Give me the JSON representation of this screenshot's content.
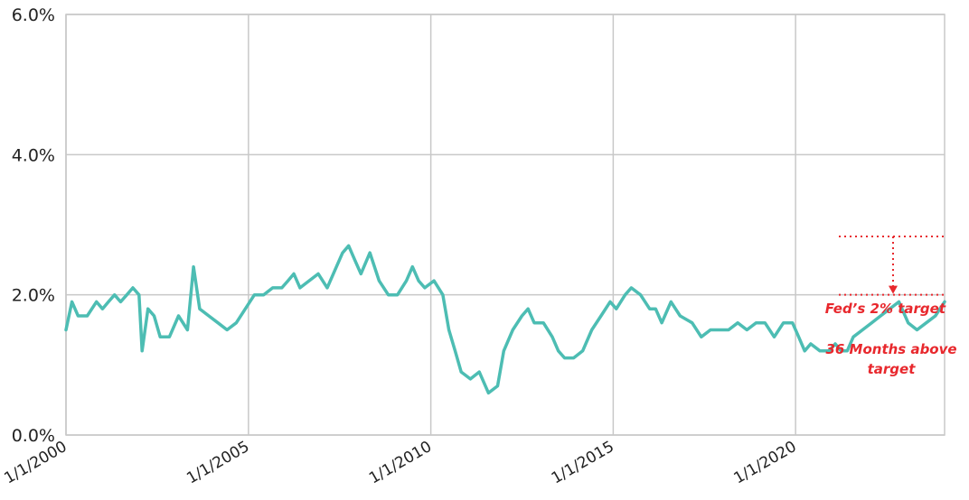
{
  "chart_data": {
    "type": "line",
    "title": "",
    "xlabel": "",
    "ylabel": "",
    "x_range": [
      "2000-01-01",
      "2024-02-01"
    ],
    "ylim": [
      0,
      6
    ],
    "y_ticks": [
      {
        "value": 0,
        "label": "0.0%"
      },
      {
        "value": 2,
        "label": "2.0%"
      },
      {
        "value": 4,
        "label": "4.0%"
      },
      {
        "value": 6,
        "label": "6.0%"
      }
    ],
    "x_ticks": [
      {
        "date": "2000-01-01",
        "label": "1/1/2000"
      },
      {
        "date": "2005-01-01",
        "label": "1/1/2005"
      },
      {
        "date": "2010-01-01",
        "label": "1/1/2010"
      },
      {
        "date": "2015-01-01",
        "label": "1/1/2015"
      },
      {
        "date": "2020-01-01",
        "label": "1/1/2020"
      }
    ],
    "grid": true,
    "line_color": "#4dbdb3",
    "annotation_color": "#e8282d",
    "series": [
      {
        "points": [
          [
            "2000-01-01",
            1.5
          ],
          [
            "2000-03-01",
            1.9
          ],
          [
            "2000-05-01",
            1.7
          ],
          [
            "2000-08-01",
            1.7
          ],
          [
            "2000-11-01",
            1.9
          ],
          [
            "2001-01-01",
            1.8
          ],
          [
            "2001-03-01",
            1.9
          ],
          [
            "2001-05-01",
            2.0
          ],
          [
            "2001-07-01",
            1.9
          ],
          [
            "2001-09-01",
            2.0
          ],
          [
            "2001-11-01",
            2.1
          ],
          [
            "2002-01-01",
            2.0
          ],
          [
            "2002-02-01",
            1.2
          ],
          [
            "2002-04-01",
            1.8
          ],
          [
            "2002-06-01",
            1.7
          ],
          [
            "2002-08-01",
            1.4
          ],
          [
            "2002-11-01",
            1.4
          ],
          [
            "2003-02-01",
            1.7
          ],
          [
            "2003-05-01",
            1.5
          ],
          [
            "2003-07-01",
            2.4
          ],
          [
            "2003-09-01",
            1.8
          ],
          [
            "2003-12-01",
            1.7
          ],
          [
            "2004-03-01",
            1.6
          ],
          [
            "2004-06-01",
            1.5
          ],
          [
            "2004-09-01",
            1.6
          ],
          [
            "2004-12-01",
            1.8
          ],
          [
            "2005-03-01",
            2.0
          ],
          [
            "2005-06-01",
            2.0
          ],
          [
            "2005-09-01",
            2.1
          ],
          [
            "2005-12-01",
            2.1
          ],
          [
            "2006-02-01",
            2.2
          ],
          [
            "2006-04-01",
            2.3
          ],
          [
            "2006-06-01",
            2.1
          ],
          [
            "2006-09-01",
            2.2
          ],
          [
            "2006-12-01",
            2.3
          ],
          [
            "2007-03-01",
            2.1
          ],
          [
            "2007-06-01",
            2.4
          ],
          [
            "2007-08-01",
            2.6
          ],
          [
            "2007-10-01",
            2.7
          ],
          [
            "2007-12-01",
            2.5
          ],
          [
            "2008-02-01",
            2.3
          ],
          [
            "2008-05-01",
            2.6
          ],
          [
            "2008-08-01",
            2.2
          ],
          [
            "2008-11-01",
            2.0
          ],
          [
            "2009-02-01",
            2.0
          ],
          [
            "2009-05-01",
            2.2
          ],
          [
            "2009-07-01",
            2.4
          ],
          [
            "2009-09-01",
            2.2
          ],
          [
            "2009-11-01",
            2.1
          ],
          [
            "2010-02-01",
            2.2
          ],
          [
            "2010-05-01",
            2.0
          ],
          [
            "2010-07-01",
            1.5
          ],
          [
            "2010-09-01",
            1.2
          ],
          [
            "2010-11-01",
            0.9
          ],
          [
            "2011-02-01",
            0.8
          ],
          [
            "2011-05-01",
            0.9
          ],
          [
            "2011-08-01",
            0.6
          ],
          [
            "2011-11-01",
            0.7
          ],
          [
            "2012-01-01",
            1.2
          ],
          [
            "2012-04-01",
            1.5
          ],
          [
            "2012-07-01",
            1.7
          ],
          [
            "2012-09-01",
            1.8
          ],
          [
            "2012-11-01",
            1.6
          ],
          [
            "2013-02-01",
            1.6
          ],
          [
            "2013-05-01",
            1.4
          ],
          [
            "2013-07-01",
            1.2
          ],
          [
            "2013-09-01",
            1.1
          ],
          [
            "2013-12-01",
            1.1
          ],
          [
            "2014-03-01",
            1.2
          ],
          [
            "2014-06-01",
            1.5
          ],
          [
            "2014-09-01",
            1.7
          ],
          [
            "2014-12-01",
            1.9
          ],
          [
            "2015-02-01",
            1.8
          ],
          [
            "2015-05-01",
            2.0
          ],
          [
            "2015-07-01",
            2.1
          ],
          [
            "2015-10-01",
            2.0
          ],
          [
            "2016-01-01",
            1.8
          ],
          [
            "2016-03-01",
            1.8
          ],
          [
            "2016-05-01",
            1.6
          ],
          [
            "2016-08-01",
            1.9
          ],
          [
            "2016-11-01",
            1.7
          ],
          [
            "2017-03-01",
            1.6
          ],
          [
            "2017-06-01",
            1.4
          ],
          [
            "2017-09-01",
            1.5
          ],
          [
            "2017-12-01",
            1.5
          ],
          [
            "2018-03-01",
            1.5
          ],
          [
            "2018-06-01",
            1.6
          ],
          [
            "2018-09-01",
            1.5
          ],
          [
            "2018-12-01",
            1.6
          ],
          [
            "2019-03-01",
            1.6
          ],
          [
            "2019-06-01",
            1.4
          ],
          [
            "2019-09-01",
            1.6
          ],
          [
            "2019-12-01",
            1.6
          ],
          [
            "2020-02-01",
            1.4
          ],
          [
            "2020-04-01",
            1.2
          ],
          [
            "2020-06-01",
            1.3
          ],
          [
            "2020-09-01",
            1.2
          ],
          [
            "2020-12-01",
            1.2
          ],
          [
            "2021-02-01",
            1.3
          ],
          [
            "2021-04-01",
            1.2
          ],
          [
            "2021-06-01",
            1.2
          ],
          [
            "2021-08-01",
            1.4
          ],
          [
            "2021-11-01",
            1.5
          ],
          [
            "2022-02-01",
            1.6
          ],
          [
            "2022-05-01",
            1.7
          ],
          [
            "2022-08-01",
            1.8
          ],
          [
            "2022-11-01",
            1.9
          ],
          [
            "2023-02-01",
            1.6
          ],
          [
            "2023-05-01",
            1.5
          ],
          [
            "2023-08-01",
            1.6
          ],
          [
            "2023-11-01",
            1.7
          ],
          [
            "2024-02-01",
            1.9
          ]
        ]
      }
    ],
    "annotations": {
      "target_label": "Fed’s 2% target",
      "months_label_line1": "36 Months above",
      "months_label_line2": "target"
    }
  }
}
